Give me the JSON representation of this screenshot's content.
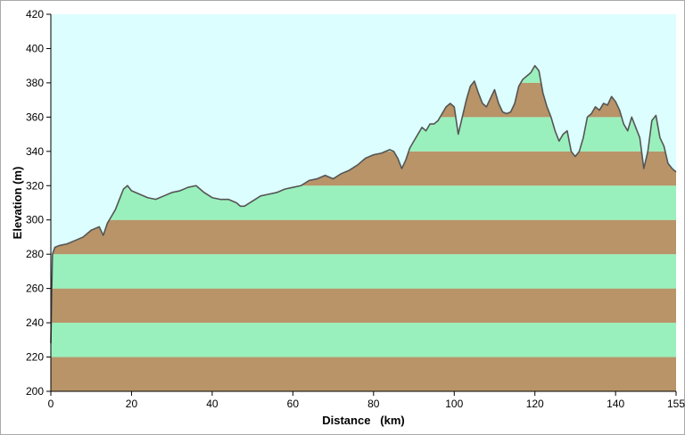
{
  "chart_data": {
    "type": "area",
    "xlabel": "Distance   (km)",
    "ylabel": "Elevation (m)",
    "xlim": [
      0,
      155
    ],
    "ylim": [
      200,
      420
    ],
    "xticks": [
      0,
      20,
      40,
      60,
      80,
      100,
      120,
      140,
      155
    ],
    "yticks": [
      200,
      220,
      240,
      260,
      280,
      300,
      320,
      340,
      360,
      380,
      400,
      420
    ],
    "band_step": 20,
    "colors": {
      "sky": "#dcfefe",
      "band_brown": "#b89468",
      "band_green": "#9af0bc",
      "profile_line": "#555555",
      "axis": "#000000"
    },
    "profile": [
      [
        0,
        228
      ],
      [
        0.4,
        280
      ],
      [
        1,
        284
      ],
      [
        2,
        285
      ],
      [
        4,
        286
      ],
      [
        6,
        288
      ],
      [
        8,
        290
      ],
      [
        10,
        294
      ],
      [
        12,
        296
      ],
      [
        13,
        291
      ],
      [
        14,
        298
      ],
      [
        15,
        302
      ],
      [
        16,
        306
      ],
      [
        17,
        312
      ],
      [
        18,
        318
      ],
      [
        19,
        320
      ],
      [
        20,
        317
      ],
      [
        22,
        315
      ],
      [
        24,
        313
      ],
      [
        26,
        312
      ],
      [
        28,
        314
      ],
      [
        30,
        316
      ],
      [
        32,
        317
      ],
      [
        34,
        319
      ],
      [
        36,
        320
      ],
      [
        38,
        316
      ],
      [
        40,
        313
      ],
      [
        42,
        312
      ],
      [
        44,
        312
      ],
      [
        46,
        310
      ],
      [
        47,
        308
      ],
      [
        48,
        308
      ],
      [
        50,
        311
      ],
      [
        52,
        314
      ],
      [
        54,
        315
      ],
      [
        56,
        316
      ],
      [
        58,
        318
      ],
      [
        60,
        319
      ],
      [
        62,
        320
      ],
      [
        64,
        323
      ],
      [
        66,
        324
      ],
      [
        68,
        326
      ],
      [
        70,
        324
      ],
      [
        72,
        327
      ],
      [
        74,
        329
      ],
      [
        76,
        332
      ],
      [
        78,
        336
      ],
      [
        80,
        338
      ],
      [
        82,
        339
      ],
      [
        84,
        341
      ],
      [
        85,
        340
      ],
      [
        86,
        336
      ],
      [
        87,
        330
      ],
      [
        88,
        335
      ],
      [
        89,
        342
      ],
      [
        90,
        346
      ],
      [
        91,
        350
      ],
      [
        92,
        354
      ],
      [
        93,
        352
      ],
      [
        94,
        356
      ],
      [
        95,
        356
      ],
      [
        96,
        358
      ],
      [
        97,
        362
      ],
      [
        98,
        366
      ],
      [
        99,
        368
      ],
      [
        100,
        366
      ],
      [
        101,
        350
      ],
      [
        102,
        360
      ],
      [
        103,
        370
      ],
      [
        104,
        378
      ],
      [
        105,
        381
      ],
      [
        106,
        374
      ],
      [
        107,
        368
      ],
      [
        108,
        366
      ],
      [
        109,
        371
      ],
      [
        110,
        376
      ],
      [
        111,
        368
      ],
      [
        112,
        363
      ],
      [
        113,
        362
      ],
      [
        114,
        363
      ],
      [
        115,
        368
      ],
      [
        116,
        378
      ],
      [
        117,
        382
      ],
      [
        118,
        384
      ],
      [
        119,
        386
      ],
      [
        120,
        390
      ],
      [
        121,
        387
      ],
      [
        122,
        374
      ],
      [
        123,
        366
      ],
      [
        124,
        360
      ],
      [
        125,
        352
      ],
      [
        126,
        346
      ],
      [
        127,
        350
      ],
      [
        128,
        352
      ],
      [
        129,
        340
      ],
      [
        130,
        337
      ],
      [
        131,
        340
      ],
      [
        132,
        348
      ],
      [
        133,
        360
      ],
      [
        134,
        362
      ],
      [
        135,
        366
      ],
      [
        136,
        364
      ],
      [
        137,
        368
      ],
      [
        138,
        367
      ],
      [
        139,
        372
      ],
      [
        140,
        369
      ],
      [
        141,
        364
      ],
      [
        142,
        356
      ],
      [
        143,
        352
      ],
      [
        144,
        360
      ],
      [
        145,
        354
      ],
      [
        146,
        348
      ],
      [
        147,
        330
      ],
      [
        148,
        340
      ],
      [
        149,
        358
      ],
      [
        150,
        361
      ],
      [
        151,
        348
      ],
      [
        152,
        343
      ],
      [
        153,
        333
      ],
      [
        154,
        330
      ],
      [
        155,
        328
      ]
    ]
  }
}
